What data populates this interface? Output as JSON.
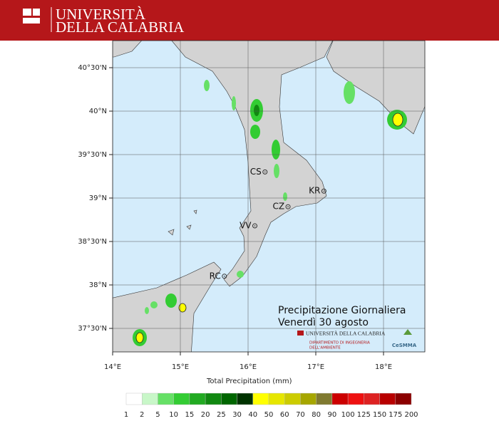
{
  "header": {
    "line1": "UNIVERSITÀ",
    "line2": "DELLA CALABRIA"
  },
  "map": {
    "lat_ticks": [
      {
        "value": 40.5,
        "label": "40°30'N"
      },
      {
        "value": 40,
        "label": "40°N"
      },
      {
        "value": 39.5,
        "label": "39°30'N"
      },
      {
        "value": 39,
        "label": "39°N"
      },
      {
        "value": 38.5,
        "label": "38°30'N"
      },
      {
        "value": 38,
        "label": "38°N"
      },
      {
        "value": 37.5,
        "label": "37°30'N"
      }
    ],
    "lon_ticks": [
      {
        "value": 14,
        "label": "14°E"
      },
      {
        "value": 15,
        "label": "15°E"
      },
      {
        "value": 16,
        "label": "16°E"
      },
      {
        "value": 17,
        "label": "17°E"
      },
      {
        "value": 18,
        "label": "18°E"
      }
    ],
    "cities": [
      {
        "name": "CS",
        "lon": 16.25,
        "lat": 39.3
      },
      {
        "name": "KR",
        "lon": 17.12,
        "lat": 39.08
      },
      {
        "name": "CZ",
        "lon": 16.59,
        "lat": 38.9
      },
      {
        "name": "VV",
        "lon": 16.1,
        "lat": 38.68
      },
      {
        "name": "RC",
        "lon": 15.65,
        "lat": 38.1
      }
    ],
    "title": "Precipitazione Giornaliera",
    "subtitle": "Venerdì 30 agosto",
    "logo_university": "UNIVERSITÀ DELLA CALABRIA",
    "logo_department": "DIPARTIMENTO DI INGEGNERIA",
    "logo_department2": "DELL'AMBIENTE",
    "logo_cesmma": "CeSMMA"
  },
  "colorbar": {
    "label": "Total Precipitation (mm)",
    "bounds": [
      1,
      2,
      5,
      10,
      15,
      20,
      25,
      30,
      40,
      50,
      60,
      70,
      80,
      90,
      100,
      125,
      150,
      175,
      200
    ],
    "colors": [
      "#ffffff",
      "#c8f7c8",
      "#66e066",
      "#33cc33",
      "#22aa22",
      "#118811",
      "#006600",
      "#003300",
      "#ffff00",
      "#e6e600",
      "#cccc00",
      "#a6a600",
      "#807a30",
      "#cc0000",
      "#ee1111",
      "#dd2222",
      "#b80000",
      "#8b0000",
      "#e07ad8"
    ]
  }
}
